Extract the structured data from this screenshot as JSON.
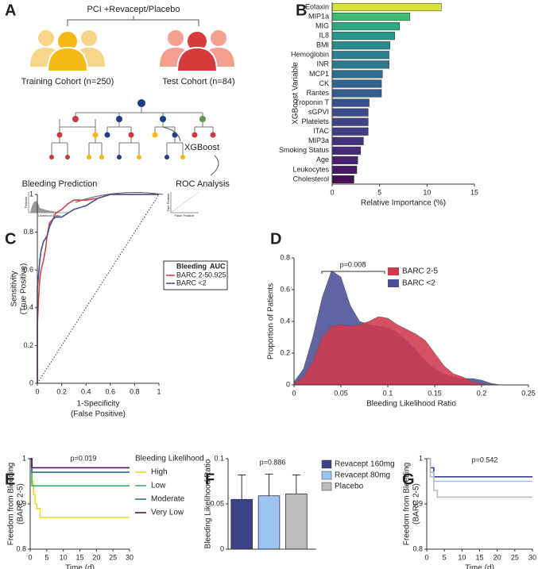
{
  "panels": [
    "A",
    "B",
    "C",
    "D",
    "E",
    "F",
    "G"
  ],
  "diagram": {
    "title": "PCI +Revacept/Placebo",
    "cohorts": [
      "Training Cohort (n=250)",
      "Test Cohort (n=84)"
    ],
    "model": "XGBoost",
    "steps": [
      "Bleeding Prediction",
      "ROC Analysis"
    ],
    "mini_labels": [
      "Patients",
      "Likelihood Ratio",
      "True Positive",
      "False Positive"
    ]
  },
  "chart_data": [
    {
      "type": "bar",
      "orientation": "horizontal",
      "categories": [
        "Eotaxin",
        "MIP1a",
        "MIG",
        "IL8",
        "BMI",
        "Hemoglobin",
        "INR",
        "MCP1",
        "CK",
        "Rantes",
        "Troponin T",
        "sGPVI",
        "Platelets",
        "ITAC",
        "MIP3a",
        "Smoking Status",
        "Age",
        "Leukocytes",
        "Cholesterol"
      ],
      "values": [
        11.5,
        8.2,
        7.1,
        6.6,
        6.1,
        6.0,
        6.0,
        5.3,
        5.2,
        5.2,
        3.9,
        3.8,
        3.8,
        3.8,
        3.3,
        3.0,
        2.7,
        2.6,
        2.3
      ],
      "colors": [
        "#d6e23a",
        "#3fbc72",
        "#2fa882",
        "#29968a",
        "#2a8a8c",
        "#2c808d",
        "#2d788e",
        "#306c8e",
        "#33648d",
        "#355d8c",
        "#3a528b",
        "#3d4b89",
        "#404486",
        "#433d84",
        "#45327c",
        "#472a77",
        "#48216f",
        "#471864",
        "#450f56"
      ],
      "xlim": [
        0,
        15
      ],
      "xticks": [
        0,
        5,
        10,
        15
      ],
      "xlabel": "Relative Importance (%)",
      "ylabel": "XGBoost Variable"
    },
    {
      "type": "line",
      "diagonal": true,
      "xlim": [
        0,
        1
      ],
      "ylim": [
        0,
        1
      ],
      "xticks": [
        0,
        0.2,
        0.4,
        0.6,
        0.8,
        1
      ],
      "yticks": [
        0,
        0.2,
        0.4,
        0.6,
        0.8,
        1
      ],
      "xlabel": [
        "1-Specificity",
        "(False Positive)"
      ],
      "ylabel": [
        "Sensitivity",
        "(True Positive)"
      ],
      "legend_title": [
        "Bleeding",
        "AUC"
      ],
      "series": [
        {
          "name": "BARC 2-5",
          "color": "#d0404a",
          "auc": 0.925,
          "x": [
            0,
            0,
            0.01,
            0.02,
            0.03,
            0.05,
            0.07,
            0.08,
            0.1,
            0.13,
            0.15,
            0.2,
            0.25,
            0.3,
            0.4,
            0.5,
            0.6,
            0.7,
            1
          ],
          "values": [
            0,
            0.3,
            0.45,
            0.55,
            0.6,
            0.65,
            0.72,
            0.78,
            0.85,
            0.87,
            0.9,
            0.92,
            0.95,
            0.97,
            0.97,
            0.98,
            1,
            1,
            1
          ]
        },
        {
          "name": "BARC <2",
          "color": "#4a5090",
          "x": [
            0,
            0,
            0.02,
            0.03,
            0.05,
            0.08,
            0.1,
            0.13,
            0.15,
            0.2,
            0.25,
            0.3,
            0.4,
            0.45,
            0.5,
            0.6,
            1
          ],
          "values": [
            0,
            0.5,
            0.65,
            0.7,
            0.75,
            0.78,
            0.83,
            0.87,
            0.88,
            0.88,
            0.9,
            0.92,
            0.94,
            0.96,
            0.98,
            1,
            1
          ]
        }
      ]
    },
    {
      "type": "area",
      "xlim": [
        0,
        0.25
      ],
      "ylim": [
        0,
        0.8
      ],
      "xticks": [
        0,
        0.05,
        0.1,
        0.15,
        0.2,
        0.25
      ],
      "yticks": [
        0,
        0.2,
        0.4,
        0.6,
        0.8
      ],
      "xlabel": "Bleeding Likelihood Ratio",
      "ylabel": "Proportion of Patients",
      "annotation": "p=0.008",
      "x": [
        0,
        0.01,
        0.02,
        0.03,
        0.04,
        0.05,
        0.06,
        0.07,
        0.08,
        0.09,
        0.1,
        0.11,
        0.12,
        0.13,
        0.14,
        0.15,
        0.16,
        0.17,
        0.18,
        0.19,
        0.2,
        0.21,
        0.22
      ],
      "series": [
        {
          "name": "BARC 2-5",
          "color": "#cf3a4e",
          "values": [
            0.01,
            0.05,
            0.15,
            0.3,
            0.37,
            0.38,
            0.37,
            0.38,
            0.4,
            0.43,
            0.42,
            0.38,
            0.35,
            0.32,
            0.28,
            0.2,
            0.12,
            0.07,
            0.05,
            0.02,
            0.01,
            0,
            0
          ]
        },
        {
          "name": "BARC <2",
          "color": "#4a4e96",
          "values": [
            0.02,
            0.1,
            0.3,
            0.55,
            0.72,
            0.68,
            0.5,
            0.4,
            0.38,
            0.37,
            0.36,
            0.33,
            0.28,
            0.22,
            0.15,
            0.1,
            0.07,
            0.05,
            0.04,
            0.04,
            0.03,
            0.01,
            0
          ]
        }
      ]
    },
    {
      "type": "line",
      "step": true,
      "xlim": [
        0,
        30
      ],
      "ylim": [
        0.8,
        1
      ],
      "xticks": [
        0,
        5,
        10,
        15,
        20,
        25,
        30
      ],
      "yticks": [
        0.8,
        0.9,
        1
      ],
      "xlabel": "Time (d)",
      "ylabel": [
        "Freedom from Bleeding",
        "(BARC 2-5)"
      ],
      "annotation": "p=0.019",
      "legend_title": "Bleeding Likelihood",
      "series": [
        {
          "name": "High",
          "color": "#f2d92e",
          "x": [
            0,
            0.5,
            1,
            1.5,
            2,
            3,
            30
          ],
          "values": [
            1,
            0.95,
            0.92,
            0.9,
            0.89,
            0.87,
            0.87
          ]
        },
        {
          "name": "Low",
          "color": "#3fb36a",
          "x": [
            0,
            0.5,
            30
          ],
          "values": [
            1,
            0.94,
            0.94
          ]
        },
        {
          "name": "Moderate",
          "color": "#2f6f8f",
          "x": [
            0,
            0.5,
            30
          ],
          "values": [
            1,
            0.97,
            0.97
          ]
        },
        {
          "name": "Very Low",
          "color": "#4b1a5a",
          "x": [
            0,
            0.5,
            30
          ],
          "values": [
            1,
            0.98,
            0.98
          ]
        }
      ]
    },
    {
      "type": "bar",
      "categories": [
        "Revacept 160mg",
        "Revacept 80mg",
        "Placebo"
      ],
      "values": [
        0.055,
        0.059,
        0.061
      ],
      "errors": [
        0.027,
        0.024,
        0.021
      ],
      "colors": [
        "#3c4285",
        "#9bc4f2",
        "#bdbdbd"
      ],
      "ylim": [
        0,
        0.1
      ],
      "yticks": [
        0,
        0.05,
        0.1
      ],
      "ylabel": "Bleeding Likelihood Ratio",
      "annotation": "p=0.886"
    },
    {
      "type": "line",
      "step": true,
      "xlim": [
        0,
        30
      ],
      "ylim": [
        0.8,
        1
      ],
      "xticks": [
        0,
        5,
        10,
        15,
        20,
        25,
        30
      ],
      "yticks": [
        0.8,
        0.9,
        1
      ],
      "xlabel": "Time (d)",
      "ylabel": [
        "Freedom from Bleeding",
        "(BARC 2-5)"
      ],
      "annotation": "p=0.542",
      "series": [
        {
          "color": "#3c4285",
          "x": [
            0,
            1,
            2,
            30
          ],
          "values": [
            1,
            0.98,
            0.96,
            0.96
          ]
        },
        {
          "color": "#9bc4f2",
          "x": [
            0,
            1,
            2,
            30
          ],
          "values": [
            1,
            0.97,
            0.95,
            0.95
          ]
        },
        {
          "color": "#bdbdbd",
          "x": [
            0,
            1,
            2,
            3,
            30
          ],
          "values": [
            1,
            0.96,
            0.93,
            0.915,
            0.915
          ]
        }
      ]
    }
  ]
}
